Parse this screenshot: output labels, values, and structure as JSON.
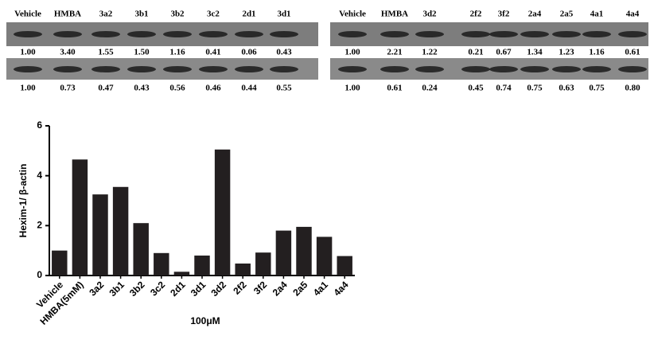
{
  "blots": [
    {
      "lanes": [
        "Vehicle",
        "HMBA",
        "3a2",
        "3b1",
        "3b2",
        "3c2",
        "2d1",
        "3d1"
      ],
      "hexim": [
        "1.00",
        "3.40",
        "1.55",
        "1.50",
        "1.16",
        "0.41",
        "0.06",
        "0.43"
      ],
      "actin": [
        "1.00",
        "0.73",
        "0.47",
        "0.43",
        "0.56",
        "0.46",
        "0.44",
        "0.55"
      ]
    },
    {
      "lanes": [
        "Vehicle",
        "HMBA",
        "3d2",
        "2f2",
        "3f2",
        "2a4",
        "2a5",
        "4a1",
        "4a4"
      ],
      "hexim": [
        "1.00",
        "2.21",
        "1.22",
        "0.21",
        "0.67",
        "1.34",
        "1.23",
        "1.16",
        "0.61"
      ],
      "actin": [
        "1.00",
        "0.61",
        "0.24",
        "0.45",
        "0.74",
        "0.75",
        "0.63",
        "0.75",
        "0.80"
      ]
    }
  ],
  "chart_data": {
    "type": "bar",
    "y_label": "Hexim-1/ β-actin",
    "x_label": "100μM",
    "categories": [
      "Vehicle",
      "HMBA(5mM)",
      "3a2",
      "3b1",
      "3b2",
      "3c2",
      "2d1",
      "3d1",
      "3d2",
      "2f2",
      "3f2",
      "2a4",
      "2a5",
      "4a1",
      "4a4"
    ],
    "values": [
      1.0,
      4.65,
      3.25,
      3.55,
      2.1,
      0.9,
      0.15,
      0.8,
      5.05,
      0.48,
      0.92,
      1.8,
      1.95,
      1.55,
      0.78
    ],
    "color": "#231f20",
    "ylim": [
      0,
      6
    ],
    "yticks": [
      0,
      2,
      4,
      6
    ]
  }
}
